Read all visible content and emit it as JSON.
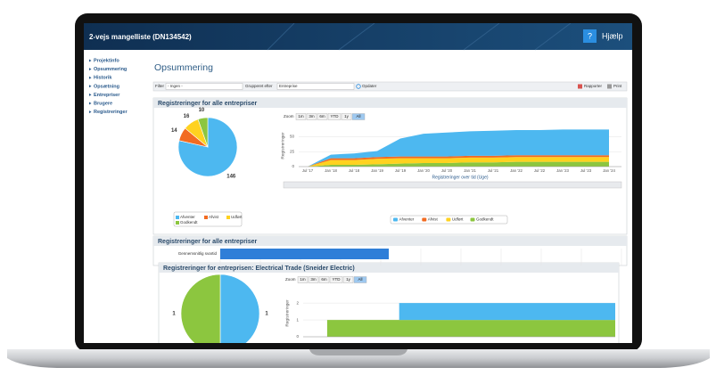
{
  "header": {
    "title": "2-vejs mangelliste (DN134542)",
    "help_icon": "?",
    "help": "Hjælp"
  },
  "nav": [
    "Projektinfo",
    "Opsummering",
    "Historik",
    "Opsætning",
    "Entrepriser",
    "Brugere",
    "Registreringer"
  ],
  "page_title": "Opsummering",
  "toolbar": {
    "filter_label": "Filter",
    "filter_value": "- Ingen -",
    "group_label": "Grupperet efter",
    "group_value": "Entreprise",
    "refresh": "Opdater",
    "report": "Rapporter",
    "print": "Print"
  },
  "panel1": {
    "title": "Registreringer for alle entrepriser",
    "pie": {
      "type": "pie",
      "categories": [
        "Afventer",
        "Afvist",
        "Udført",
        "Godkendt"
      ],
      "values": [
        146,
        14,
        16,
        10
      ],
      "colors": [
        "#4db8f0",
        "#f26b21",
        "#ffd21f",
        "#8cc63f"
      ]
    },
    "timeline": {
      "type": "area",
      "stacked": true,
      "zoom_label": "Zoom",
      "zoom_buttons": [
        "1m",
        "3m",
        "6m",
        "YTD",
        "1y",
        "All"
      ],
      "zoom_active": 5,
      "ylabel": "Registreringer",
      "xlabel": "Registreringer over tid (Uge)",
      "categories": [
        "Jul '17",
        "Jan '18",
        "Jul '18",
        "Jan '19",
        "Jul '19",
        "Jan '20",
        "Jul '20",
        "Jan '21",
        "Jul '21",
        "Jan '22",
        "Jul '22",
        "Jan '23",
        "Jul '23",
        "Jan '24"
      ],
      "ylim": [
        0,
        70
      ],
      "yticks": [
        0,
        25,
        50
      ],
      "series": [
        {
          "name": "Afventer",
          "color": "#4db8f0",
          "values": [
            0,
            6,
            8,
            10,
            30,
            38,
            40,
            41,
            42,
            42,
            42,
            43,
            43,
            43
          ]
        },
        {
          "name": "Afvist",
          "color": "#f26b21",
          "values": [
            0,
            3,
            3,
            3,
            3,
            3,
            3,
            3,
            3,
            3,
            3,
            3,
            3,
            3
          ]
        },
        {
          "name": "Udført",
          "color": "#ffd21f",
          "values": [
            0,
            8,
            8,
            9,
            9,
            8,
            8,
            8,
            8,
            8,
            8,
            8,
            8,
            8
          ]
        },
        {
          "name": "Godkendt",
          "color": "#8cc63f",
          "values": [
            0,
            3,
            3,
            4,
            5,
            6,
            6,
            7,
            7,
            8,
            8,
            8,
            8,
            8
          ]
        }
      ]
    }
  },
  "panel2": {
    "title": "Registreringer for alle entrepriser",
    "chart": {
      "type": "barh",
      "categories": [
        "Gennemsnitlig svartid"
      ],
      "values": [
        4.2
      ],
      "color": "#2f7ed8",
      "xlim": [
        0,
        10
      ],
      "xticks": [
        0,
        1,
        2,
        3,
        4,
        5,
        6,
        7,
        8,
        9,
        10
      ],
      "grid": true
    }
  },
  "panel3": {
    "title": "Registreringer for entreprisen: Electrical Trade (Sneider Electric)",
    "pie": {
      "type": "pie",
      "values": [
        1,
        1
      ],
      "colors": [
        "#4db8f0",
        "#8cc63f"
      ]
    },
    "timeline": {
      "type": "area",
      "stacked": true,
      "step": true,
      "zoom_label": "Zoom",
      "zoom_buttons": [
        "1m",
        "3m",
        "6m",
        "YTD",
        "1y",
        "All"
      ],
      "zoom_active": 5,
      "ylabel": "Registreringer",
      "ylim": [
        0,
        2.8
      ],
      "yticks": [
        0,
        1,
        2
      ],
      "series": [
        {
          "color": "#4db8f0",
          "values": [
            0,
            0,
            0,
            0,
            1,
            1,
            1,
            1,
            1,
            1,
            1,
            1,
            1,
            1
          ]
        },
        {
          "color": "#8cc63f",
          "values": [
            0,
            1,
            1,
            1,
            1,
            1,
            1,
            1,
            1,
            1,
            1,
            1,
            1,
            1
          ]
        }
      ]
    }
  }
}
